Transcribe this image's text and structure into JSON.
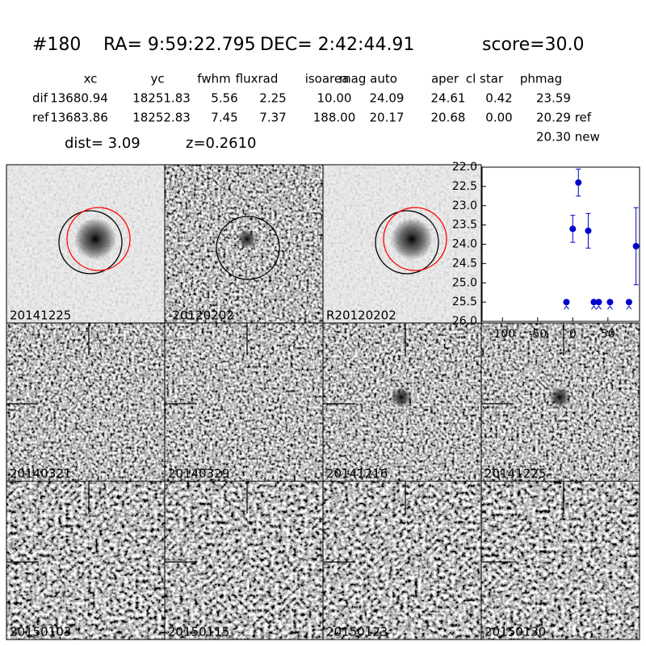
{
  "header": {
    "id": "#180",
    "ra": "RA= 9:59:22.795",
    "dec": "DEC= 2:42:44.91",
    "score": "score=30.0"
  },
  "table": {
    "columns": [
      "xc",
      "yc",
      "fwhm",
      "fluxrad",
      "isoarea",
      "mag auto",
      "aper",
      "cl star",
      "phmag"
    ],
    "rows": [
      [
        "dif",
        "13680.94",
        "18251.83",
        "5.56",
        "2.25",
        "10.00",
        "24.09",
        "24.61",
        "0.42",
        "23.59"
      ],
      [
        "ref",
        "13683.86",
        "18252.83",
        "7.45",
        "7.37",
        "188.00",
        "20.17",
        "20.68",
        "0.00",
        "20.29 ref"
      ]
    ],
    "extra": "20.30 new"
  },
  "dist": "dist=  3.09",
  "z": "z=0.2610",
  "panels": [
    {
      "label": "20141225"
    },
    {
      "label": "-20120202"
    },
    {
      "label": "R20120202"
    },
    {
      "label": "20140321"
    },
    {
      "label": "20140329"
    },
    {
      "label": "20141216"
    },
    {
      "label": "20141225",
      "color": "#ff0000"
    },
    {
      "label": "20150103"
    },
    {
      "label": "20150115"
    },
    {
      "label": "20150123"
    },
    {
      "label": "20150130"
    }
  ],
  "chart_data": {
    "type": "scatter",
    "x": [
      -9,
      0,
      8,
      22,
      30,
      37,
      53,
      80,
      90
    ],
    "values": [
      25.5,
      23.6,
      22.4,
      23.65,
      25.5,
      25.5,
      25.5,
      25.5,
      24.05
    ],
    "errors": [
      null,
      0.35,
      0.35,
      0.45,
      null,
      null,
      null,
      null,
      1.0
    ],
    "color": "#0000cc",
    "xlim": [
      -129,
      95
    ],
    "ylim": [
      22,
      26
    ],
    "y_inverted": true,
    "xticks": [
      -100,
      -50,
      0,
      50
    ],
    "yticks": [
      {
        "value": 22,
        "label": "22.0"
      },
      22.5,
      {
        "value": 23,
        "label": "23.0"
      },
      23.5,
      {
        "value": 24,
        "label": "24.0"
      },
      24.5,
      {
        "value": 25,
        "label": "25.0"
      },
      25.5,
      {
        "value": 26,
        "label": "26.0"
      }
    ]
  }
}
